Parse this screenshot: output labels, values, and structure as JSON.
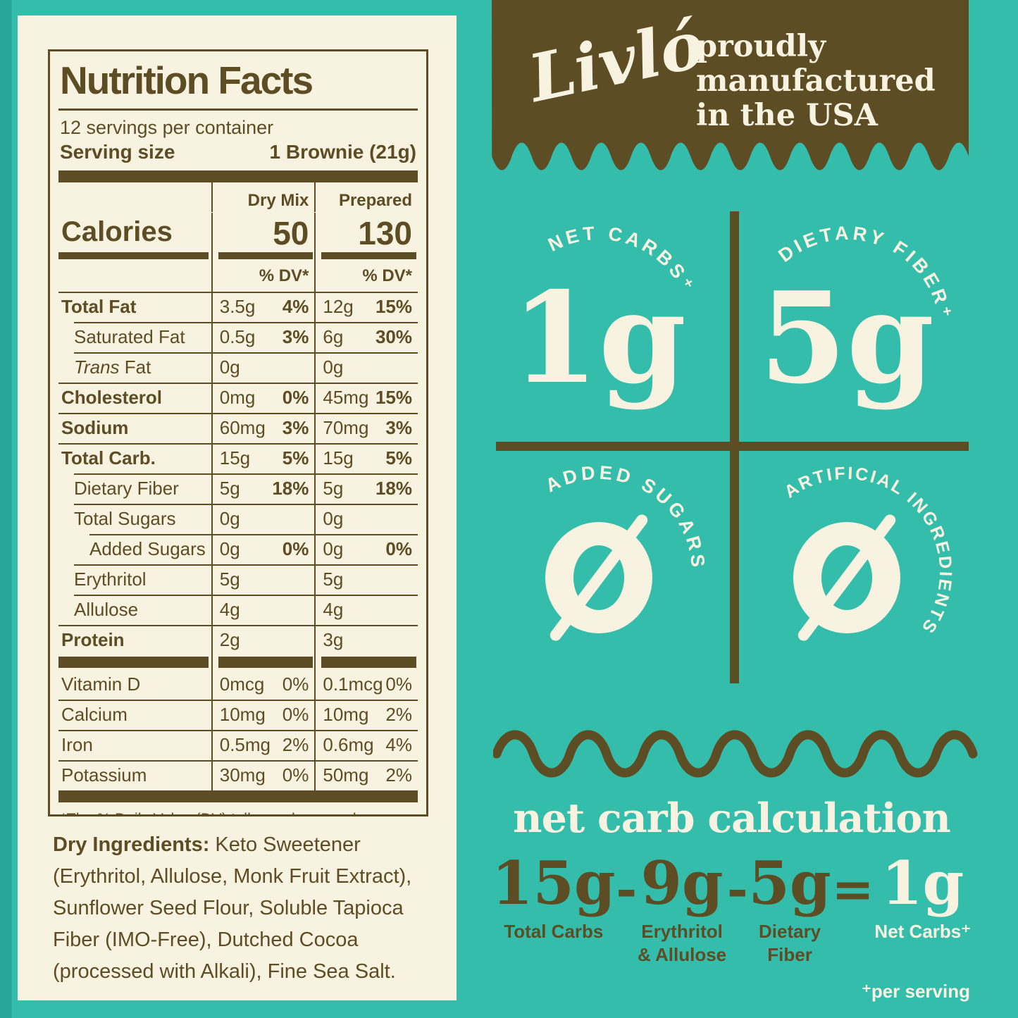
{
  "colors": {
    "teal": "#35bdac",
    "teal_dark": "#28a697",
    "brown": "#5d4d24",
    "cream": "#f8f2e1"
  },
  "nutrition_label": {
    "title": "Nutrition Facts",
    "servings_line": "12 servings per container",
    "serving_size_label": "Serving size",
    "serving_size_value": "1 Brownie (21g)",
    "column_headers": {
      "dry": "Dry Mix",
      "prepared": "Prepared"
    },
    "calories_label": "Calories",
    "calories_dry": "50",
    "calories_prepared": "130",
    "dv_header": "% DV*",
    "rows": [
      {
        "name": "Total Fat",
        "bold": true,
        "indent": 0,
        "dry_amt": "3.5g",
        "dry_pct": "4%",
        "prep_amt": "12g",
        "prep_pct": "15%"
      },
      {
        "name": "Saturated Fat",
        "indent": 1,
        "dry_amt": "0.5g",
        "dry_pct": "3%",
        "prep_amt": "6g",
        "prep_pct": "30%"
      },
      {
        "name_italic": "Trans",
        "name_rest": " Fat",
        "indent": 1,
        "dry_amt": "0g",
        "prep_amt": "0g"
      },
      {
        "name": "Cholesterol",
        "bold": true,
        "indent": 0,
        "dry_amt": "0mg",
        "dry_pct": "0%",
        "prep_amt": "45mg",
        "prep_pct": "15%"
      },
      {
        "name": "Sodium",
        "bold": true,
        "indent": 0,
        "dry_amt": "60mg",
        "dry_pct": "3%",
        "prep_amt": "70mg",
        "prep_pct": "3%"
      },
      {
        "name": "Total Carb.",
        "bold": true,
        "indent": 0,
        "dry_amt": "15g",
        "dry_pct": "5%",
        "prep_amt": "15g",
        "prep_pct": "5%"
      },
      {
        "name": "Dietary Fiber",
        "indent": 1,
        "dry_amt": "5g",
        "dry_pct": "18%",
        "prep_amt": "5g",
        "prep_pct": "18%"
      },
      {
        "name": "Total Sugars",
        "indent": 1,
        "dry_amt": "0g",
        "prep_amt": "0g"
      },
      {
        "name": "Added Sugars",
        "indent": 2,
        "dry_amt": "0g",
        "dry_pct": "0%",
        "prep_amt": "0g",
        "prep_pct": "0%"
      },
      {
        "name": "Erythritol",
        "indent": 1,
        "dry_amt": "5g",
        "prep_amt": "5g"
      },
      {
        "name": "Allulose",
        "indent": 1,
        "dry_amt": "4g",
        "prep_amt": "4g"
      },
      {
        "name": "Protein",
        "bold": true,
        "indent": 0,
        "dry_amt": "2g",
        "prep_amt": "3g"
      }
    ],
    "vitamin_rows": [
      {
        "name": "Vitamin D",
        "indent": 0,
        "dry_amt": "0mcg",
        "dry_pct": "0%",
        "prep_amt": "0.1mcg",
        "prep_pct": "0%"
      },
      {
        "name": "Calcium",
        "indent": 0,
        "dry_amt": "10mg",
        "dry_pct": "0%",
        "prep_amt": "10mg",
        "prep_pct": "2%"
      },
      {
        "name": "Iron",
        "indent": 0,
        "dry_amt": "0.5mg",
        "dry_pct": "2%",
        "prep_amt": "0.6mg",
        "prep_pct": "4%"
      },
      {
        "name": "Potassium",
        "indent": 0,
        "dry_amt": "30mg",
        "dry_pct": "0%",
        "prep_amt": "50mg",
        "prep_pct": "2%"
      }
    ],
    "footnote": "*The % Daily Value (DV) tells you how much a nutrient in a serving of food contributes to a daily diet. 2,000 calories a day is used for general nutrition advice."
  },
  "ingredients": {
    "lead": "Dry Ingredients:",
    "text": " Keto Sweetener (Erythritol, Allulose, Monk Fruit Extract), Sunflower Seed Flour, Soluble Tapioca Fiber (IMO-Free), Dutched Cocoa (processed with Alkali), Fine Sea Salt."
  },
  "banner": {
    "logo": "Livló",
    "tagline": "proudly manufactured in the USA"
  },
  "quadrants": [
    {
      "arc_label": "NET CARBS⁺",
      "value": "1g",
      "symbol": "text"
    },
    {
      "arc_label": "DIETARY FIBER⁺",
      "value": "5g",
      "symbol": "text"
    },
    {
      "arc_label": "ADDED SUGARS",
      "value": "0",
      "symbol": "crossed-zero"
    },
    {
      "arc_label": "ARTIFICIAL INGREDIENTS",
      "value": "0",
      "symbol": "crossed-zero"
    }
  ],
  "calculation": {
    "title": "net carb calculation",
    "terms": [
      {
        "value": "15g",
        "label": "Total Carbs",
        "highlight": false
      },
      {
        "value": "9g",
        "label": "Erythritol\n& Allulose",
        "highlight": false
      },
      {
        "value": "5g",
        "label": "Dietary\nFiber",
        "highlight": false
      },
      {
        "value": "1g",
        "label": "Net Carbs⁺",
        "highlight": true
      }
    ],
    "operators": [
      "-",
      "-",
      "="
    ],
    "footnote": "⁺per serving"
  }
}
